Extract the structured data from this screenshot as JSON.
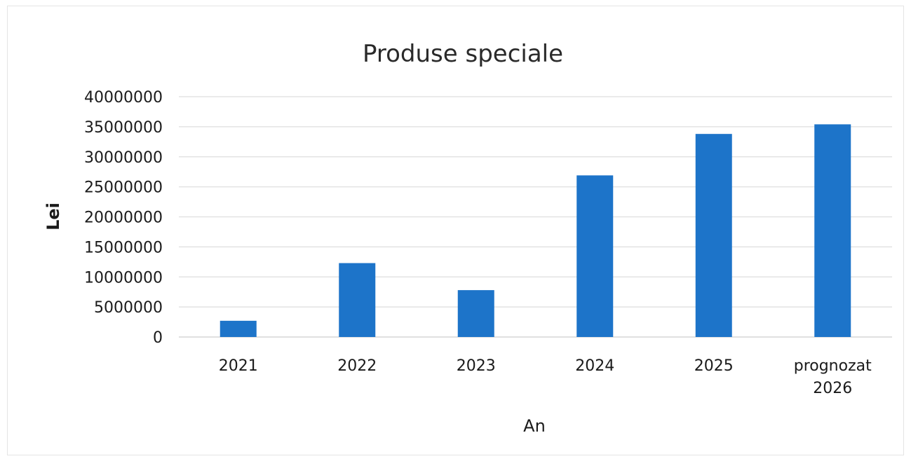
{
  "chart_data": {
    "type": "bar",
    "title": "Produse speciale",
    "xlabel": "An",
    "ylabel": "Lei",
    "categories": [
      "2021",
      "2022",
      "2023",
      "2024",
      "2025",
      "prognozat 2026"
    ],
    "values": [
      2700000,
      12300000,
      7800000,
      26900000,
      33800000,
      35400000
    ],
    "ylim": [
      0,
      40000000
    ],
    "yticks": [
      "0",
      "5000000",
      "10000000",
      "15000000",
      "20000000",
      "25000000",
      "30000000",
      "35000000",
      "40000000"
    ],
    "grid": true,
    "legend": "none",
    "bar_color": "#1d74c9"
  }
}
